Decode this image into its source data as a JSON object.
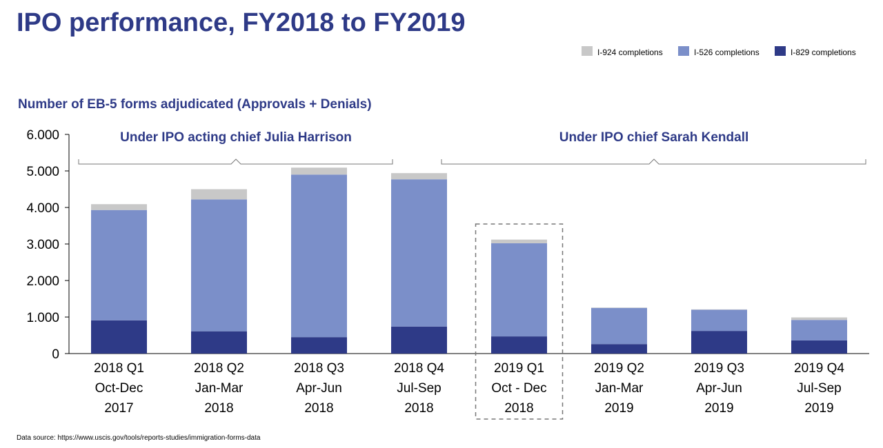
{
  "page": {
    "title": "IPO performance, FY2018 to FY2019",
    "subtitle": "Number of EB-5 forms adjudicated (Approvals + Denials)",
    "source": "Data source: https://www.uscis.gov/tools/reports-studies/immigration-forms-data"
  },
  "chart_data": {
    "type": "bar",
    "stacked": true,
    "categories": [
      [
        "2018 Q1",
        "Oct-Dec",
        "2017"
      ],
      [
        "2018 Q2",
        "Jan-Mar",
        "2018"
      ],
      [
        "2018 Q3",
        "Apr-Jun",
        "2018"
      ],
      [
        "2018 Q4",
        "Jul-Sep",
        "2018"
      ],
      [
        "2019 Q1",
        "Oct - Dec",
        "2018"
      ],
      [
        "2019 Q2",
        "Jan-Mar",
        "2019"
      ],
      [
        "2019 Q3",
        "Apr-Jun",
        "2019"
      ],
      [
        "2019 Q4",
        "Jul-Sep",
        "2019"
      ]
    ],
    "series": [
      {
        "name": "I-829 completions",
        "color": "#2e3a87",
        "values": [
          910,
          610,
          450,
          740,
          470,
          260,
          620,
          360
        ]
      },
      {
        "name": "I-526 completions",
        "color": "#7b8fc9",
        "values": [
          3020,
          3610,
          4450,
          4030,
          2550,
          990,
          580,
          560
        ]
      },
      {
        "name": "I-924 completions",
        "color": "#c8c8c8",
        "values": [
          160,
          280,
          190,
          170,
          100,
          10,
          10,
          70
        ]
      }
    ],
    "legend_order": [
      "I-924 completions",
      "I-526 completions",
      "I-829 completions"
    ],
    "legend_position": "top-right",
    "ylim": [
      0,
      6000
    ],
    "yticks": [
      0,
      1000,
      2000,
      3000,
      4000,
      5000,
      6000
    ],
    "ytick_labels": [
      "0",
      "1.000",
      "2.000",
      "3.000",
      "4.000",
      "5.000",
      "6.000"
    ],
    "grid": false,
    "periods": [
      {
        "label": "Under IPO acting chief Julia Harrison",
        "from_category": 0,
        "to_category": 3
      },
      {
        "label": "Under IPO chief Sarah Kendall",
        "from_category": 4,
        "to_category": 7
      }
    ],
    "highlighted_category": 4
  }
}
